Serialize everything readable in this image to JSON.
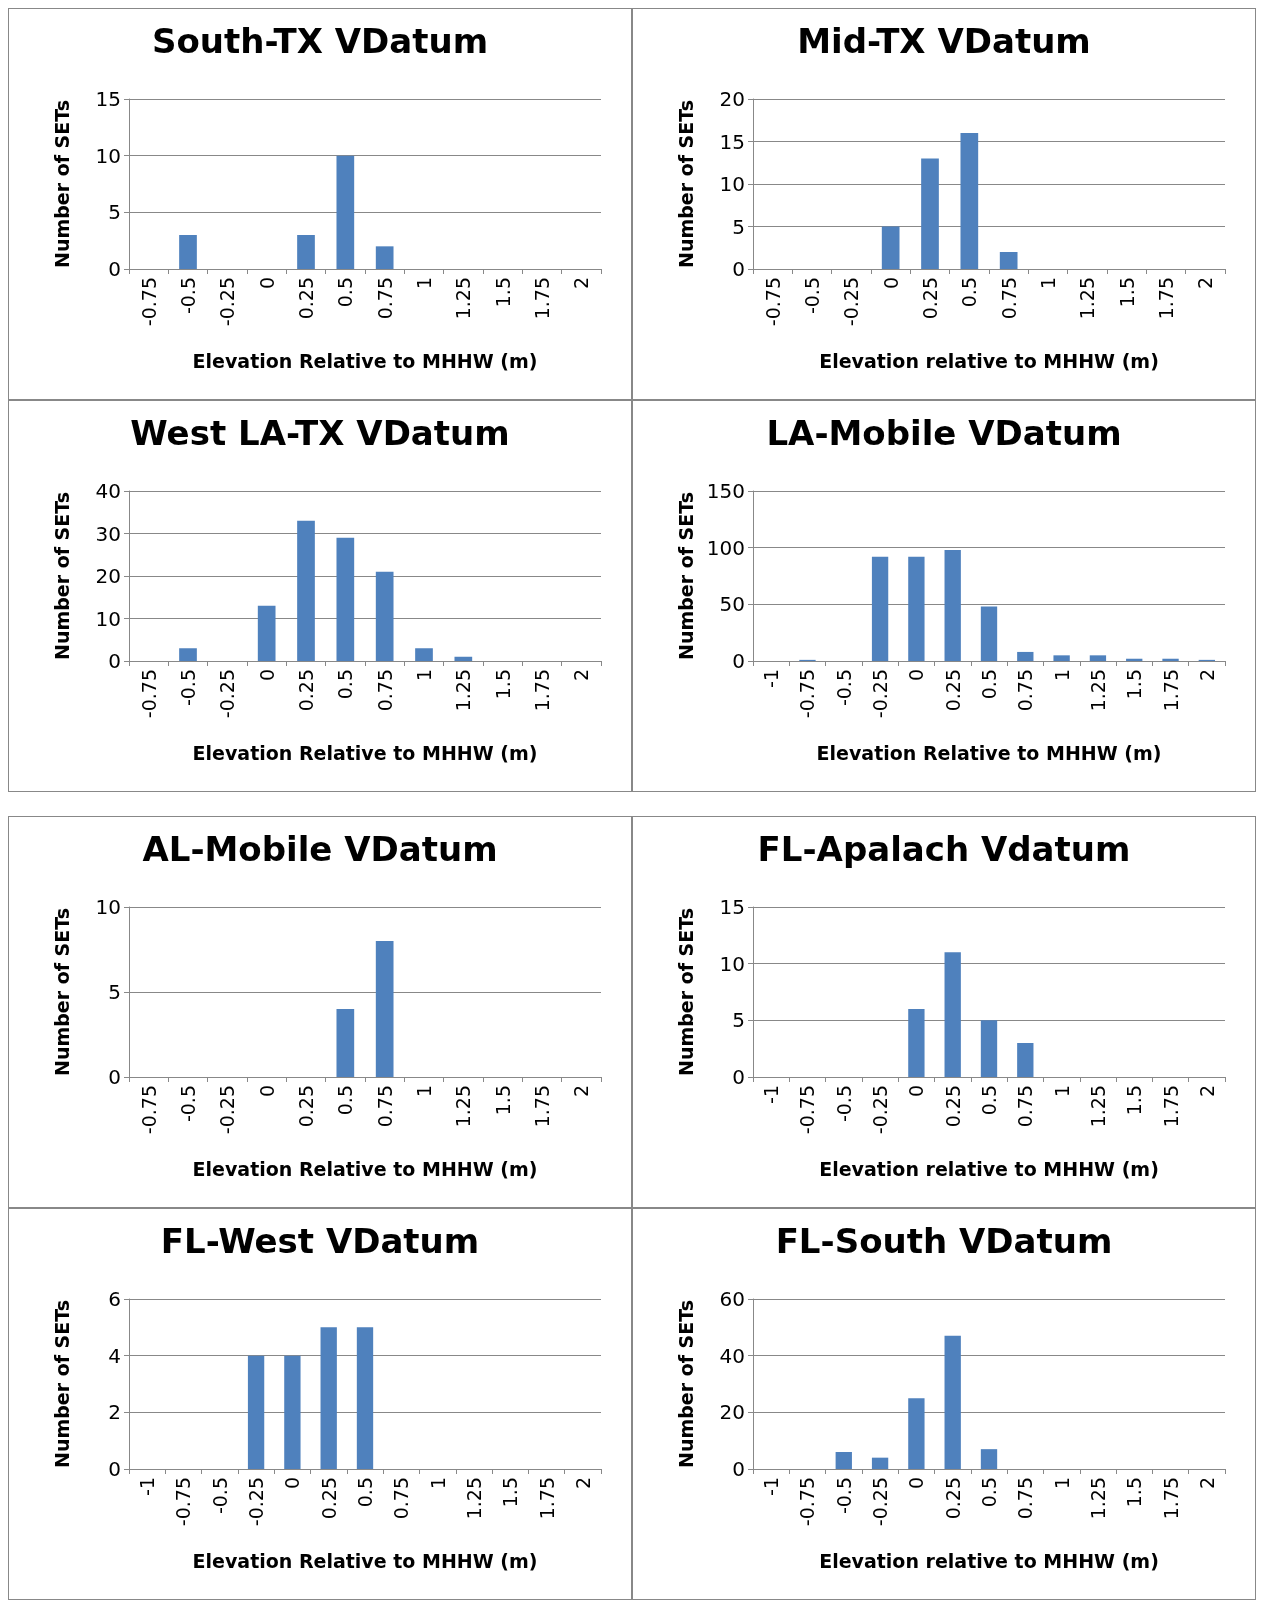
{
  "chart_data": [
    {
      "type": "bar",
      "title": "South-TX VDatum",
      "xlabel": "Elevation Relative to MHHW (m)",
      "ylabel": "Number of SETs",
      "categories": [
        "-0.75",
        "-0.5",
        "-0.25",
        "0",
        "0.25",
        "0.5",
        "0.75",
        "1",
        "1.25",
        "1.5",
        "1.75",
        "2"
      ],
      "values": [
        0,
        3,
        0,
        0,
        3,
        10,
        2,
        0,
        0,
        0,
        0,
        0
      ],
      "color": "#4f81bd",
      "ylim": [
        0,
        15
      ],
      "yticks": [
        0,
        5,
        10,
        15
      ],
      "grid": "y"
    },
    {
      "type": "bar",
      "title": "Mid-TX VDatum",
      "xlabel": "Elevation relative to MHHW (m)",
      "ylabel": "Number of SETs",
      "categories": [
        "-0.75",
        "-0.5",
        "-0.25",
        "0",
        "0.25",
        "0.5",
        "0.75",
        "1",
        "1.25",
        "1.5",
        "1.75",
        "2"
      ],
      "values": [
        0,
        0,
        0,
        5,
        13,
        16,
        2,
        0,
        0,
        0,
        0,
        0
      ],
      "color": "#4f81bd",
      "ylim": [
        0,
        20
      ],
      "yticks": [
        0,
        5,
        10,
        15,
        20
      ],
      "grid": "y"
    },
    {
      "type": "bar",
      "title": "West LA-TX VDatum",
      "xlabel": "Elevation Relative to MHHW (m)",
      "ylabel": "Number of SETs",
      "categories": [
        "-0.75",
        "-0.5",
        "-0.25",
        "0",
        "0.25",
        "0.5",
        "0.75",
        "1",
        "1.25",
        "1.5",
        "1.75",
        "2"
      ],
      "values": [
        0,
        3,
        0,
        13,
        33,
        29,
        21,
        3,
        1,
        0,
        0,
        0
      ],
      "color": "#4f81bd",
      "ylim": [
        0,
        40
      ],
      "yticks": [
        0,
        10,
        20,
        30,
        40
      ],
      "grid": "y"
    },
    {
      "type": "bar",
      "title": "LA-Mobile VDatum",
      "xlabel": "Elevation Relative to MHHW (m)",
      "ylabel": "Number of SETs",
      "categories": [
        "-1",
        "-0.75",
        "-0.5",
        "-0.25",
        "0",
        "0.25",
        "0.5",
        "0.75",
        "1",
        "1.25",
        "1.5",
        "1.75",
        "2"
      ],
      "values": [
        0,
        1,
        0,
        92,
        92,
        98,
        48,
        8,
        5,
        5,
        2,
        2,
        1
      ],
      "color": "#4f81bd",
      "ylim": [
        0,
        150
      ],
      "yticks": [
        0,
        50,
        100,
        150
      ],
      "grid": "y"
    },
    {
      "type": "bar",
      "title": "AL-Mobile VDatum",
      "xlabel": "Elevation Relative to MHHW (m)",
      "ylabel": "Number of SETs",
      "categories": [
        "-0.75",
        "-0.5",
        "-0.25",
        "0",
        "0.25",
        "0.5",
        "0.75",
        "1",
        "1.25",
        "1.5",
        "1.75",
        "2"
      ],
      "values": [
        0,
        0,
        0,
        0,
        0,
        4,
        8,
        0,
        0,
        0,
        0,
        0
      ],
      "color": "#4f81bd",
      "ylim": [
        0,
        10
      ],
      "yticks": [
        0,
        5,
        10
      ],
      "grid": "y"
    },
    {
      "type": "bar",
      "title": "FL-Apalach Vdatum",
      "xlabel": "Elevation relative to MHHW (m)",
      "ylabel": "Number of SETs",
      "categories": [
        "-1",
        "-0.75",
        "-0.5",
        "-0.25",
        "0",
        "0.25",
        "0.5",
        "0.75",
        "1",
        "1.25",
        "1.5",
        "1.75",
        "2"
      ],
      "values": [
        0,
        0,
        0,
        0,
        6,
        11,
        5,
        3,
        0,
        0,
        0,
        0,
        0
      ],
      "color": "#4f81bd",
      "ylim": [
        0,
        15
      ],
      "yticks": [
        0,
        5,
        10,
        15
      ],
      "grid": "y"
    },
    {
      "type": "bar",
      "title": "FL-West VDatum",
      "xlabel": "Elevation Relative to MHHW (m)",
      "ylabel": "Number of SETs",
      "categories": [
        "-1",
        "-0.75",
        "-0.5",
        "-0.25",
        "0",
        "0.25",
        "0.5",
        "0.75",
        "1",
        "1.25",
        "1.5",
        "1.75",
        "2"
      ],
      "values": [
        0,
        0,
        0,
        4,
        4,
        5,
        5,
        0,
        0,
        0,
        0,
        0,
        0
      ],
      "color": "#4f81bd",
      "ylim": [
        0,
        6
      ],
      "yticks": [
        0,
        2,
        4,
        6
      ],
      "grid": "y"
    },
    {
      "type": "bar",
      "title": "FL-South VDatum",
      "xlabel": "Elevation relative to MHHW (m)",
      "ylabel": "Number of SETs",
      "categories": [
        "-1",
        "-0.75",
        "-0.5",
        "-0.25",
        "0",
        "0.25",
        "0.5",
        "0.75",
        "1",
        "1.25",
        "1.5",
        "1.75",
        "2"
      ],
      "values": [
        0,
        0,
        6,
        4,
        25,
        47,
        7,
        0,
        0,
        0,
        0,
        0,
        0
      ],
      "color": "#4f81bd",
      "ylim": [
        0,
        60
      ],
      "yticks": [
        0,
        20,
        40,
        60
      ],
      "grid": "y"
    }
  ]
}
